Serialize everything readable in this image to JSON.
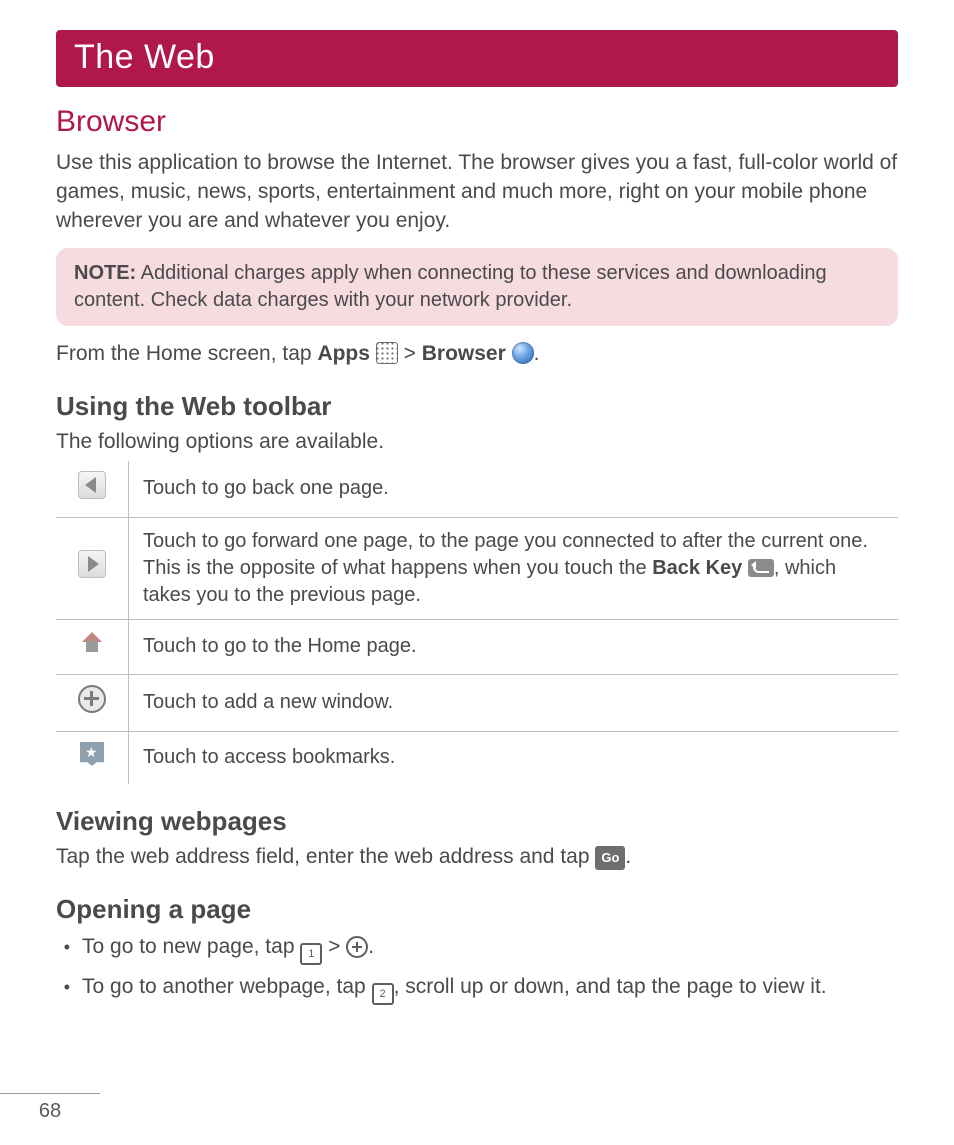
{
  "banner": {
    "title": "The Web"
  },
  "section_browser": {
    "heading": "Browser",
    "intro": "Use this application to browse the Internet. The browser gives you a fast, full-color world of games, music, news, sports, entertainment and much more, right on your mobile phone wherever you are and whatever you enjoy.",
    "note_label": "NOTE:",
    "note_text": " Additional charges apply when connecting to these services and downloading content. Check data charges with your network provider.",
    "nav_prefix": "From the Home screen, tap ",
    "nav_apps": "Apps",
    "nav_sep": " > ",
    "nav_browser": "Browser",
    "nav_suffix": "."
  },
  "section_toolbar": {
    "heading": "Using the Web toolbar",
    "intro": "The following options are available.",
    "rows": [
      {
        "icon": "back",
        "text": "Touch to go back one page."
      },
      {
        "icon": "forward",
        "pre": "Touch to go forward one page, to the page you connected to after the current one. This is the opposite of what happens when you touch the ",
        "bold": "Back Key",
        "post": ", which takes you to the previous page."
      },
      {
        "icon": "home",
        "text": "Touch to go to the Home page."
      },
      {
        "icon": "plus",
        "text": "Touch to add a new window."
      },
      {
        "icon": "star",
        "text": " Touch to access bookmarks."
      }
    ]
  },
  "section_viewing": {
    "heading": "Viewing webpages",
    "text_pre": "Tap the web address field, enter the web address and tap ",
    "go_label": "Go",
    "text_post": "."
  },
  "section_opening": {
    "heading": "Opening a page",
    "item1_pre": "To go to new page, tap ",
    "item1_tab": "1",
    "item1_sep": " > ",
    "item1_post": ".",
    "item2_pre": "To go to another webpage, tap ",
    "item2_tab": "2",
    "item2_post": ", scroll up or down, and tap the page to view it."
  },
  "page_number": "68",
  "colors": {
    "brand": "#b0174c",
    "note_bg": "#f6dbe0",
    "text": "#4a4a4a",
    "rule": "#bfbfbf"
  }
}
